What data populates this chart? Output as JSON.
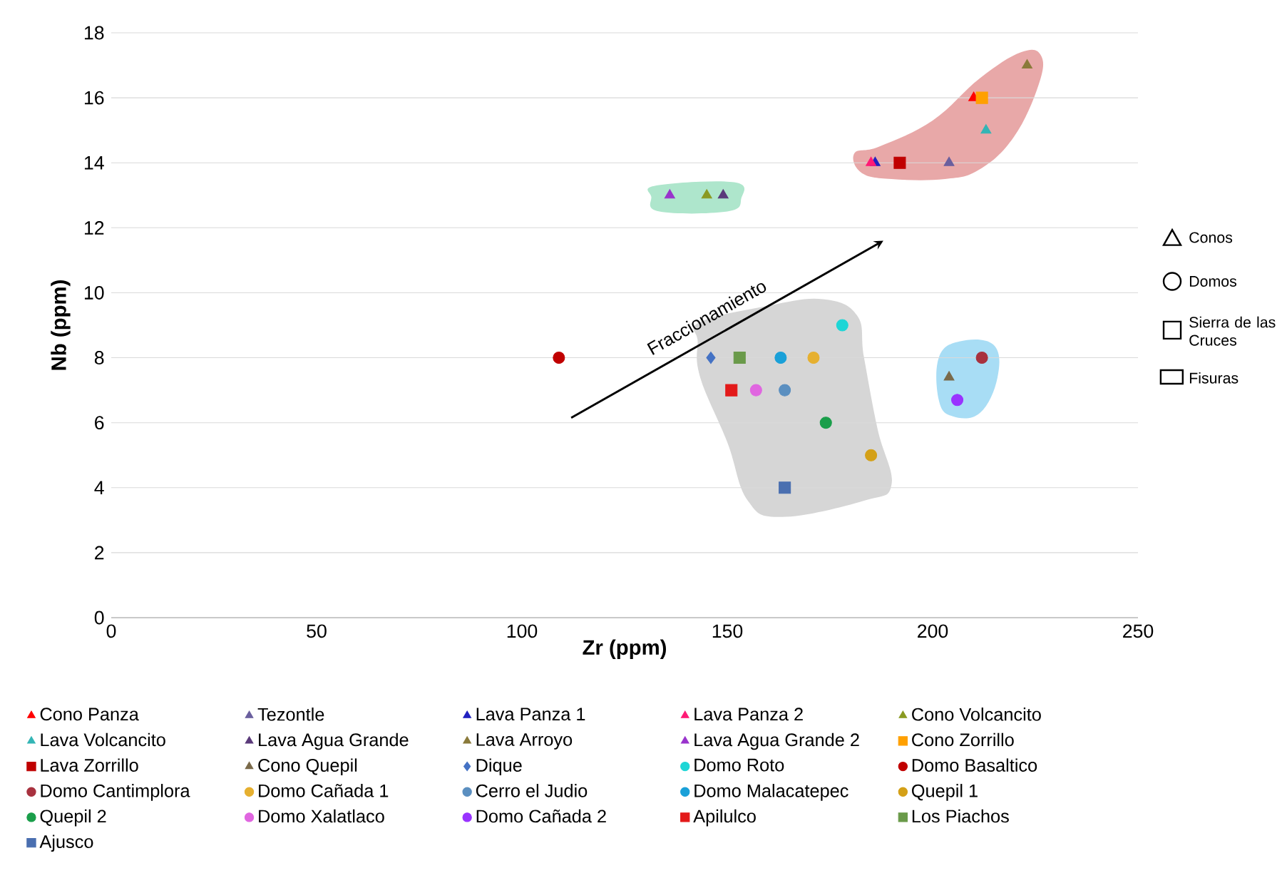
{
  "chart_data": {
    "type": "scatter",
    "xlabel": "Zr (ppm)",
    "ylabel": "Nb (ppm)",
    "xlim": [
      0,
      250
    ],
    "xticks": [
      0,
      50,
      100,
      150,
      200,
      250
    ],
    "ylim": [
      0,
      18
    ],
    "yticks": [
      0,
      2,
      4,
      6,
      8,
      10,
      12,
      14,
      16,
      18
    ],
    "grid": "y",
    "legend": "bottom",
    "annotations": [
      "Fraccionamiento",
      "Conos",
      "Domos",
      "Sierra de las Cruces",
      "Fisuras"
    ],
    "series": [
      {
        "name": "Cono Panza",
        "color": "#ff0000",
        "marker": "triangle",
        "x": [
          210
        ],
        "values": [
          16
        ]
      },
      {
        "name": "Tezontle",
        "color": "#6a5f9e",
        "marker": "triangle",
        "x": [
          204
        ],
        "values": [
          14
        ]
      },
      {
        "name": "Lava Panza 1",
        "color": "#2020c0",
        "marker": "triangle",
        "x": [
          186
        ],
        "values": [
          14
        ]
      },
      {
        "name": "Lava Panza 2",
        "color": "#ff1a75",
        "marker": "triangle",
        "x": [
          185
        ],
        "values": [
          14
        ]
      },
      {
        "name": "Cono Volcancito",
        "color": "#8a9a22",
        "marker": "triangle",
        "x": [
          145
        ],
        "values": [
          13
        ]
      },
      {
        "name": "Lava Volcancito",
        "color": "#33b5b5",
        "marker": "triangle",
        "x": [
          213
        ],
        "values": [
          15
        ]
      },
      {
        "name": "Lava Agua Grande",
        "color": "#5a3a7a",
        "marker": "triangle",
        "x": [
          149
        ],
        "values": [
          13
        ]
      },
      {
        "name": "Lava Arroyo",
        "color": "#8a7a3a",
        "marker": "triangle",
        "x": [
          223
        ],
        "values": [
          17
        ]
      },
      {
        "name": "Lava Agua Grande 2",
        "color": "#9933cc",
        "marker": "triangle",
        "x": [
          136
        ],
        "values": [
          13
        ]
      },
      {
        "name": "Cono Zorrillo",
        "color": "#ffa000",
        "marker": "square",
        "x": [
          212
        ],
        "values": [
          16
        ]
      },
      {
        "name": "Lava Zorrillo",
        "color": "#c00000",
        "marker": "square",
        "x": [
          192
        ],
        "values": [
          14
        ]
      },
      {
        "name": "Cono Quepil",
        "color": "#7a6a4a",
        "marker": "triangle",
        "x": [
          204
        ],
        "values": [
          7.4
        ]
      },
      {
        "name": "Dique",
        "color": "#4472c4",
        "marker": "diamond",
        "x": [
          146
        ],
        "values": [
          8
        ]
      },
      {
        "name": "Domo Roto",
        "color": "#1ed6d6",
        "marker": "circle",
        "x": [
          178
        ],
        "values": [
          9
        ]
      },
      {
        "name": "Domo Basaltico",
        "color": "#c00000",
        "marker": "circle",
        "x": [
          109
        ],
        "values": [
          8
        ]
      },
      {
        "name": "Domo Cantimplora",
        "color": "#a8323f",
        "marker": "circle",
        "x": [
          212
        ],
        "values": [
          8
        ]
      },
      {
        "name": "Domo Cañada 1",
        "color": "#e6b030",
        "marker": "circle",
        "x": [
          171
        ],
        "values": [
          8
        ]
      },
      {
        "name": "Cerro el Judio",
        "color": "#5b8fc0",
        "marker": "circle",
        "x": [
          164
        ],
        "values": [
          7
        ]
      },
      {
        "name": "Domo Malacatepec",
        "color": "#1aa0d8",
        "marker": "circle",
        "x": [
          163
        ],
        "values": [
          8
        ]
      },
      {
        "name": "Quepil 1",
        "color": "#d4a017",
        "marker": "circle",
        "x": [
          185
        ],
        "values": [
          5
        ]
      },
      {
        "name": "Quepil 2",
        "color": "#1a9e4a",
        "marker": "circle",
        "x": [
          174
        ],
        "values": [
          6
        ]
      },
      {
        "name": "Domo Xalatlaco",
        "color": "#e066e0",
        "marker": "circle",
        "x": [
          157
        ],
        "values": [
          7
        ]
      },
      {
        "name": "Domo Cañada 2",
        "color": "#9933ff",
        "marker": "circle",
        "x": [
          206
        ],
        "values": [
          6.7
        ]
      },
      {
        "name": "Apilulco",
        "color": "#e31a1a",
        "marker": "square",
        "x": [
          151
        ],
        "values": [
          7
        ]
      },
      {
        "name": "Los Piachos",
        "color": "#6a9a4a",
        "marker": "square",
        "x": [
          153
        ],
        "values": [
          8
        ]
      },
      {
        "name": "Ajusco",
        "color": "#4a6fb0",
        "marker": "square",
        "x": [
          164
        ],
        "values": [
          4
        ]
      }
    ]
  }
}
